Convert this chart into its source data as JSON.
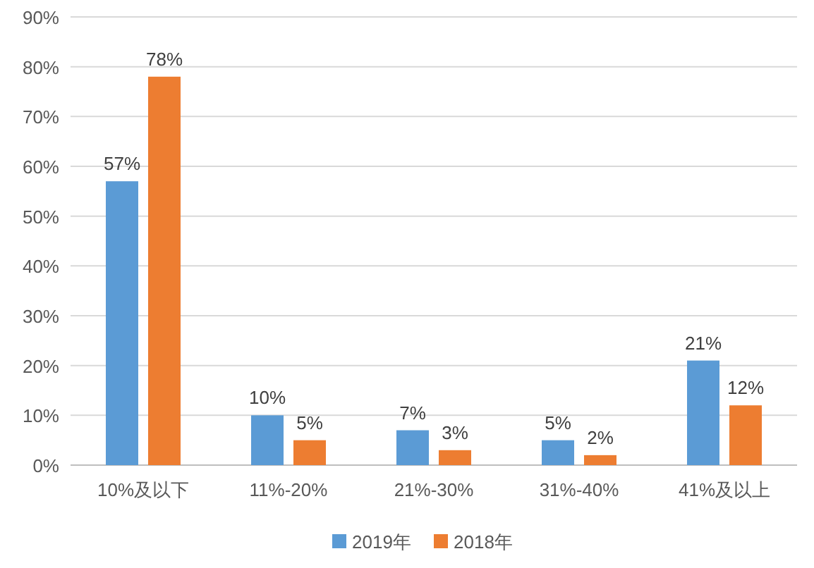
{
  "chart_data": {
    "type": "bar",
    "categories": [
      "10%及以下",
      "11%-20%",
      "21%-30%",
      "31%-40%",
      "41%及以上"
    ],
    "series": [
      {
        "name": "2019年",
        "color": "#5b9bd5",
        "values": [
          57,
          10,
          7,
          5,
          21
        ],
        "value_labels": [
          "57%",
          "10%",
          "7%",
          "5%",
          "21%"
        ]
      },
      {
        "name": "2018年",
        "color": "#ed7d31",
        "values": [
          78,
          5,
          3,
          2,
          12
        ],
        "value_labels": [
          "78%",
          "5%",
          "3%",
          "2%",
          "12%"
        ]
      }
    ],
    "ylim": [
      0,
      90
    ],
    "yticks": [
      {
        "value": 0,
        "label": "0%"
      },
      {
        "value": 10,
        "label": "10%"
      },
      {
        "value": 20,
        "label": "20%"
      },
      {
        "value": 30,
        "label": "30%"
      },
      {
        "value": 40,
        "label": "40%"
      },
      {
        "value": 50,
        "label": "50%"
      },
      {
        "value": 60,
        "label": "60%"
      },
      {
        "value": 70,
        "label": "70%"
      },
      {
        "value": 80,
        "label": "80%"
      },
      {
        "value": 90,
        "label": "90%"
      }
    ],
    "grid": "y",
    "legend": "bottom"
  }
}
